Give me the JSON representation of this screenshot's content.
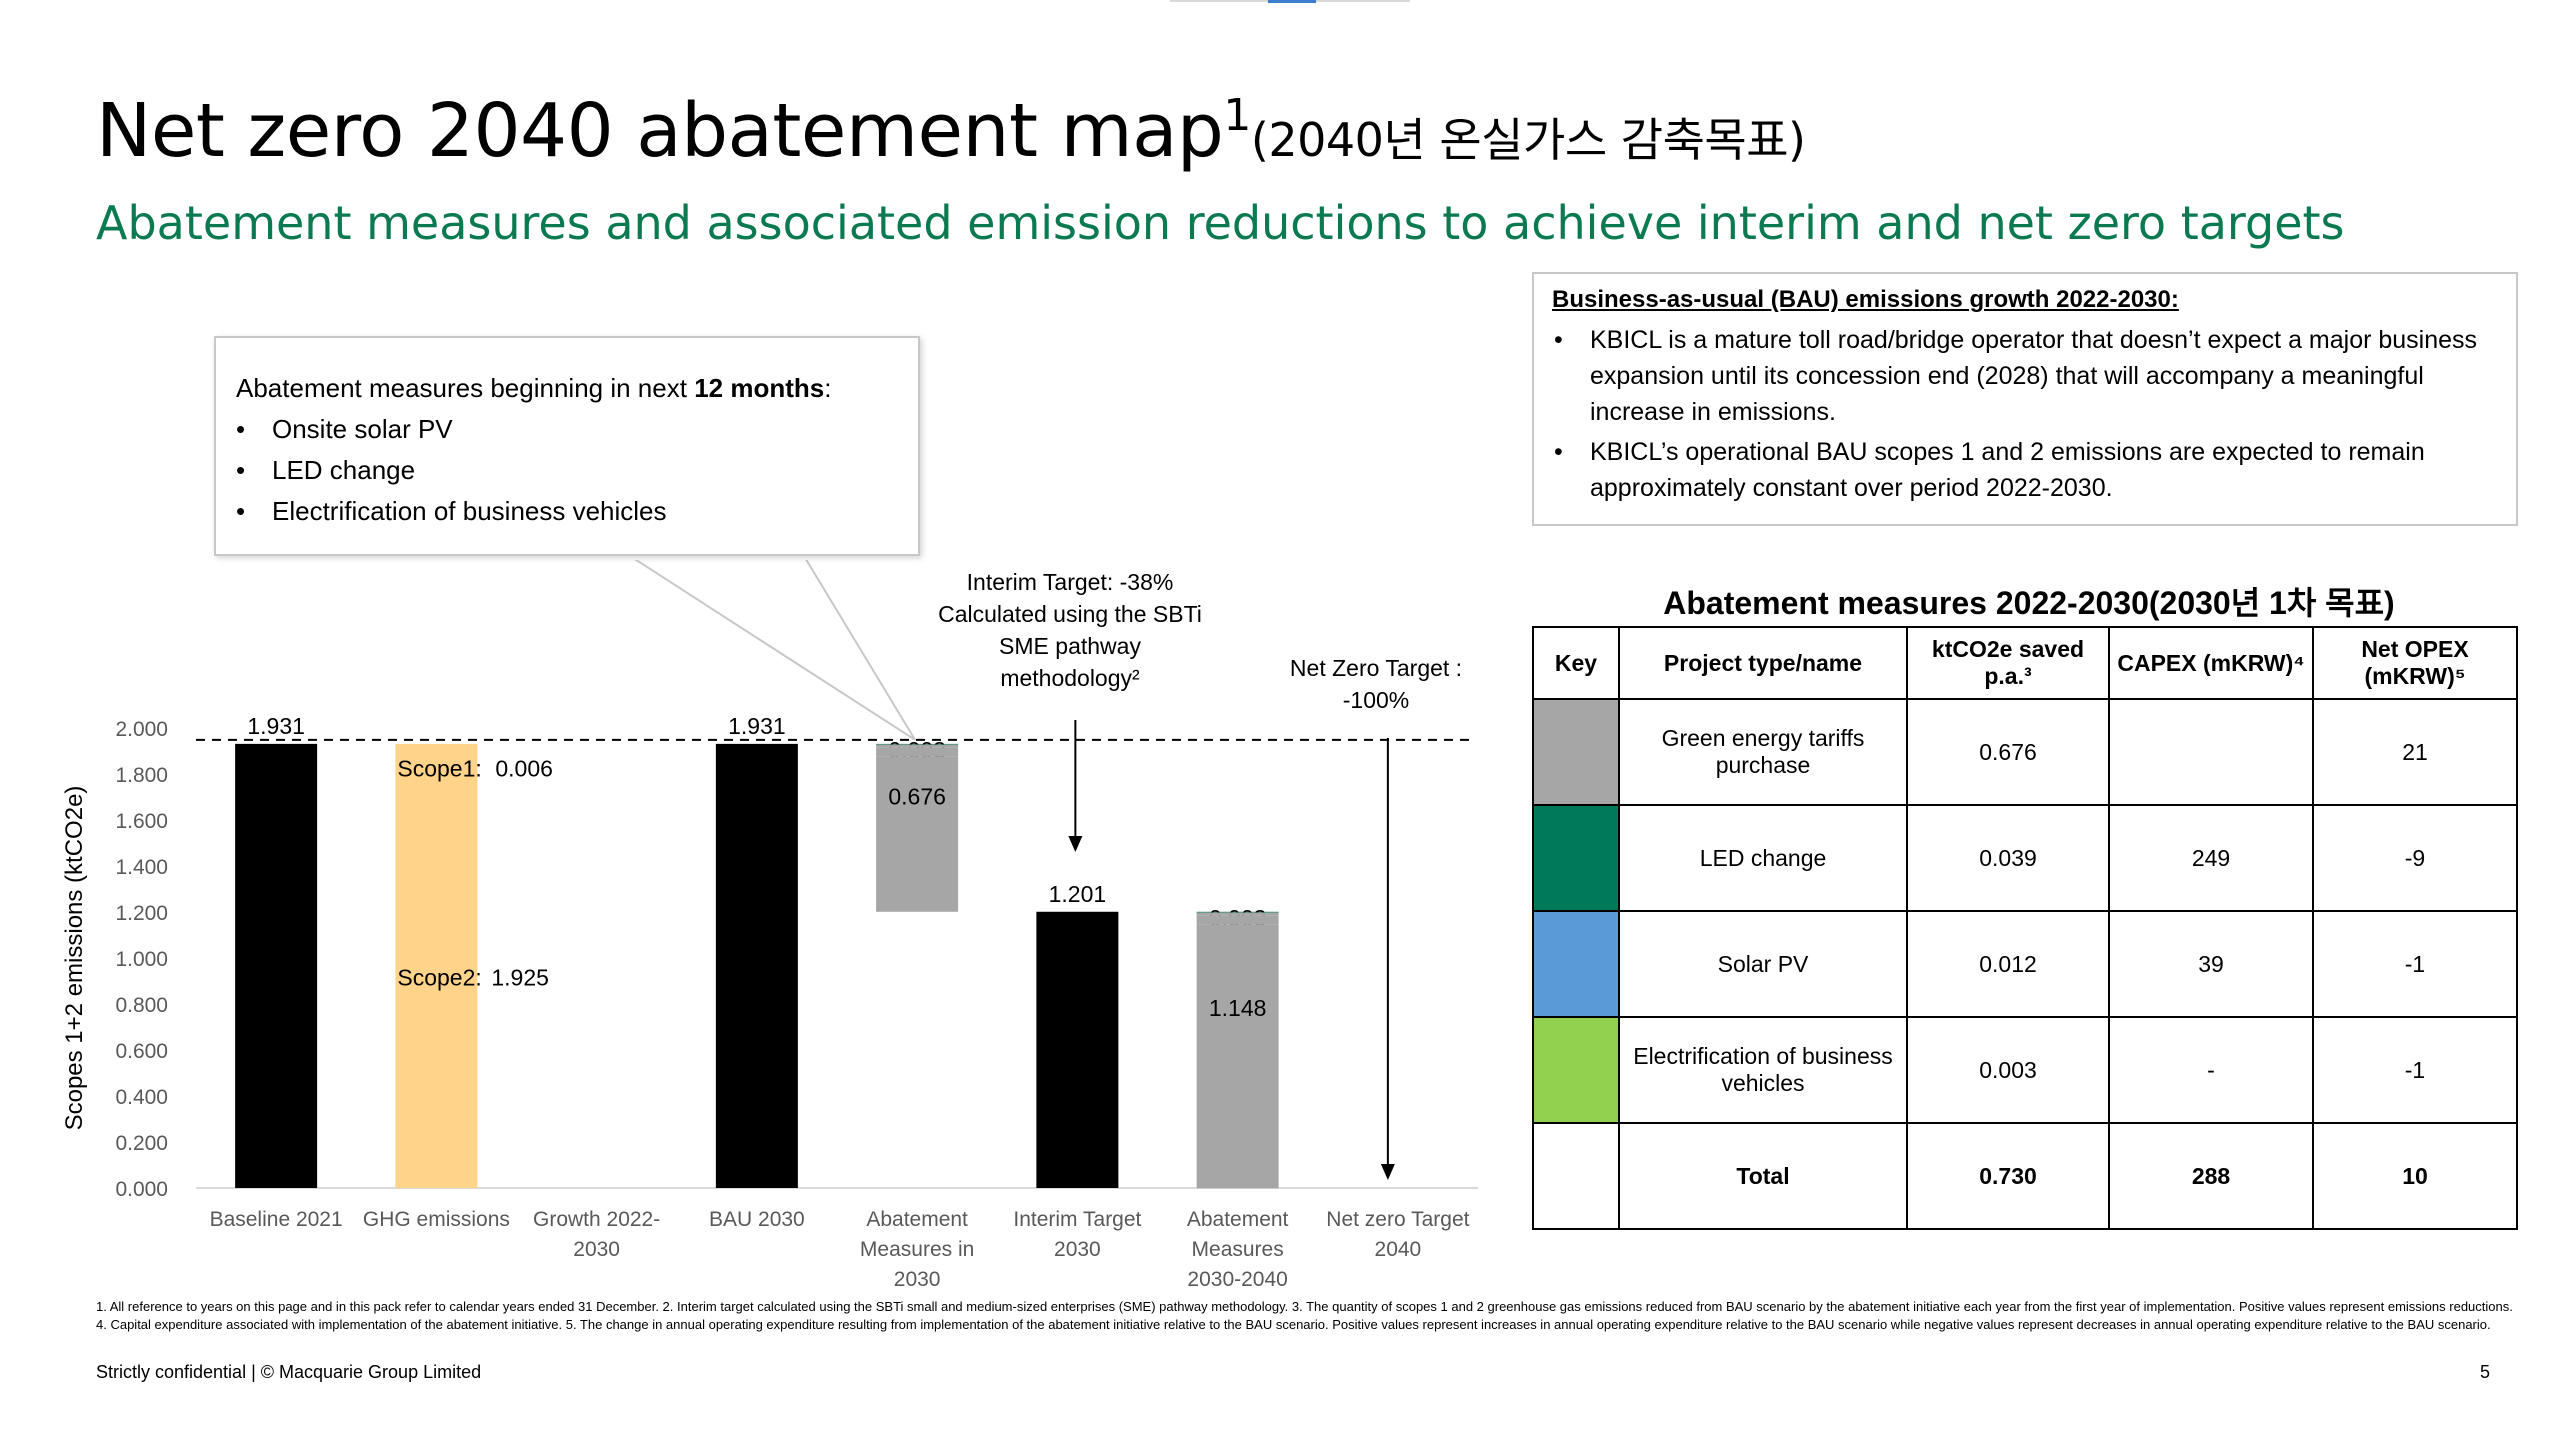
{
  "title": {
    "main": "Net zero 2040 abatement map",
    "sup": "1",
    "korean": "(2040년 온실가스 감축목표)"
  },
  "subtitle": "Abatement measures and associated emission reductions to achieve interim and net zero targets",
  "callout": {
    "intro_prefix": "Abatement measures beginning in next ",
    "intro_bold": "12 months",
    "intro_suffix": ":",
    "items": [
      "Onsite solar PV",
      "LED change",
      "Electrification of business vehicles"
    ]
  },
  "bau_box": {
    "heading": "Business-as-usual (BAU) emissions growth 2022-2030:",
    "bullets": [
      "KBICL is a mature toll road/bridge operator that doesn’t expect a major business expansion until its concession end (2028) that will accompany a meaningful increase in emissions.",
      "KBICL’s operational BAU scopes 1 and 2 emissions are expected to remain approximately constant over period 2022-2030."
    ]
  },
  "chart_data": {
    "type": "bar",
    "subtype": "waterfall",
    "ylabel": "Scopes 1+2 emissions (ktCO2e)",
    "ylim": [
      0,
      2.0
    ],
    "yticks": [
      "0.000",
      "0.200",
      "0.400",
      "0.600",
      "0.800",
      "1.000",
      "1.200",
      "1.400",
      "1.600",
      "1.800",
      "2.000"
    ],
    "categories": [
      [
        "Baseline 2021"
      ],
      [
        "GHG emissions"
      ],
      [
        "Growth 2022-",
        "2030"
      ],
      [
        "BAU 2030"
      ],
      [
        "Abatement",
        "Measures in",
        "2030"
      ],
      [
        "Interim Target",
        "2030"
      ],
      [
        "Abatement",
        "Measures",
        "2030-2040"
      ],
      [
        "Net zero Target",
        "2040"
      ]
    ],
    "totals": [
      {
        "index": 0,
        "value": 1.931,
        "label": "1.931"
      },
      {
        "index": 3,
        "value": 1.931,
        "label": "1.931"
      },
      {
        "index": 5,
        "value": 1.201,
        "label": "1.201"
      }
    ],
    "ghg_split": {
      "index": 1,
      "scope1": 0.006,
      "scope2": 1.925,
      "scope1_label": "Scope1:",
      "scope1_value": "0.006",
      "scope2_label": "Scope2:",
      "scope2_value": "1.925"
    },
    "stacks": [
      {
        "index": 4,
        "top": 1.931,
        "segments": [
          {
            "name": "Electrification of business vehicles",
            "value": 0.003,
            "label": "0.003",
            "color": "#1a8a6b"
          },
          {
            "name": "Solar PV",
            "value": 0.012,
            "label": "0.012",
            "color": "#a6a6a6"
          },
          {
            "name": "LED change",
            "value": 0.039,
            "label": "0.039",
            "color": "#a6a6a6"
          },
          {
            "name": "Green energy tariffs purchase",
            "value": 0.676,
            "label": "0.676",
            "color": "#a6a6a6"
          }
        ]
      },
      {
        "index": 6,
        "top": 1.201,
        "segments": [
          {
            "value": 0.003,
            "label": "0.003",
            "color": "#1a8a6b"
          },
          {
            "value": 0.012,
            "label": "0.012",
            "color": "#a6a6a6"
          },
          {
            "value": 0.039,
            "label": "0.039",
            "color": "#a6a6a6"
          },
          {
            "value": 1.148,
            "label": "1.148",
            "color": "#a6a6a6"
          }
        ]
      }
    ],
    "baseline_line": 1.931,
    "interim_annotation": [
      "Interim Target: -38%",
      "Calculated using the SBTi",
      "SME pathway",
      "methodology²"
    ],
    "netzero_annotation": [
      "Net Zero Target :",
      "-100%"
    ],
    "colors": {
      "total": "#000000",
      "ghg": "#ffd48a",
      "stack_top": "#1a8a6b",
      "stack": "#a6a6a6",
      "axis_text": "#595959"
    }
  },
  "table": {
    "title": "Abatement measures 2022-2030(2030년 1차 목표)",
    "headers": [
      "Key",
      "Project type/name",
      "ktCO2e saved p.a.³",
      "CAPEX (mKRW)⁴",
      "Net OPEX (mKRW)⁵"
    ],
    "rows": [
      {
        "color": "#a6a6a6",
        "name": "Green energy tariffs purchase",
        "saved": "0.676",
        "capex": "",
        "opex": "21"
      },
      {
        "color": "#00795a",
        "name": "LED change",
        "saved": "0.039",
        "capex": "249",
        "opex": "-9"
      },
      {
        "color": "#5b9bd5",
        "name": "Solar PV",
        "saved": "0.012",
        "capex": "39",
        "opex": "-1"
      },
      {
        "color": "#92d050",
        "name": "Electrification of business vehicles",
        "saved": "0.003",
        "capex": "-",
        "opex": "-1"
      }
    ],
    "total": {
      "name": "Total",
      "saved": "0.730",
      "capex": "288",
      "opex": "10"
    }
  },
  "footnote": "1. All reference to years on this page and in this pack refer to calendar years ended 31 December. 2. Interim target calculated using the SBTi small and medium-sized enterprises (SME) pathway methodology. 3. The quantity of scopes 1 and 2 greenhouse gas emissions reduced from BAU scenario by the abatement initiative each year from the first year of implementation. Positive values represent emissions reductions. 4. Capital expenditure associated with implementation of the abatement initiative. 5. The change in annual operating expenditure resulting from implementation of the abatement initiative relative to the BAU scenario. Positive values represent increases in annual operating expenditure relative to the BAU scenario while negative values represent decreases in annual operating expenditure relative to the BAU scenario.",
  "confidential": "Strictly confidential | © Macquarie Group Limited",
  "page_number": "5"
}
